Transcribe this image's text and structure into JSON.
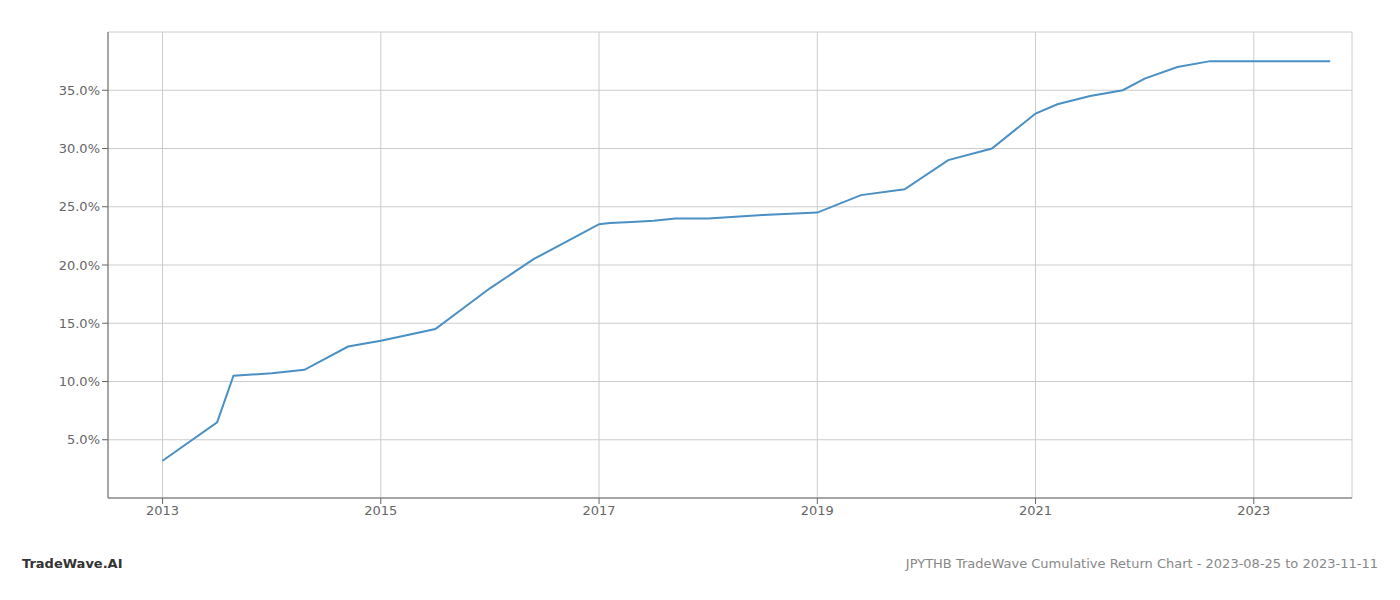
{
  "chart_data": {
    "type": "line",
    "x": [
      2013.0,
      2013.5,
      2013.65,
      2014.0,
      2014.3,
      2014.7,
      2015.0,
      2015.5,
      2016.0,
      2016.4,
      2016.8,
      2017.0,
      2017.1,
      2017.3,
      2017.5,
      2017.7,
      2018.0,
      2018.5,
      2019.0,
      2019.4,
      2019.8,
      2020.2,
      2020.6,
      2021.0,
      2021.2,
      2021.5,
      2021.8,
      2022.0,
      2022.3,
      2022.6,
      2023.0,
      2023.7
    ],
    "values": [
      3.2,
      6.5,
      10.5,
      10.7,
      11.0,
      13.0,
      13.5,
      14.5,
      18.0,
      20.5,
      22.5,
      23.5,
      23.6,
      23.7,
      23.8,
      24.0,
      24.0,
      24.3,
      24.5,
      26.0,
      26.5,
      29.0,
      30.0,
      33.0,
      33.8,
      34.5,
      35.0,
      36.0,
      37.0,
      37.5,
      37.5,
      37.5
    ],
    "color": "#4a90c4",
    "xlim": [
      2012.5,
      2023.9
    ],
    "ylim": [
      0,
      40
    ],
    "xticks": [
      2013,
      2015,
      2017,
      2019,
      2021,
      2023
    ],
    "yticks": [
      {
        "value": 5.0,
        "label": "5.0%"
      },
      {
        "value": 10.0,
        "label": "10.0%"
      },
      {
        "value": 15.0,
        "label": "15.0%"
      },
      {
        "value": 20.0,
        "label": "20.0%"
      },
      {
        "value": 25.0,
        "label": "25.0%"
      },
      {
        "value": 30.0,
        "label": "30.0%"
      },
      {
        "value": 35.0,
        "label": "35.0%"
      }
    ],
    "grid": true,
    "annotations": [
      "TradeWave.AI",
      "JPYTHB TradeWave Cumulative Return Chart - 2023-08-25 to 2023-11-11"
    ]
  }
}
